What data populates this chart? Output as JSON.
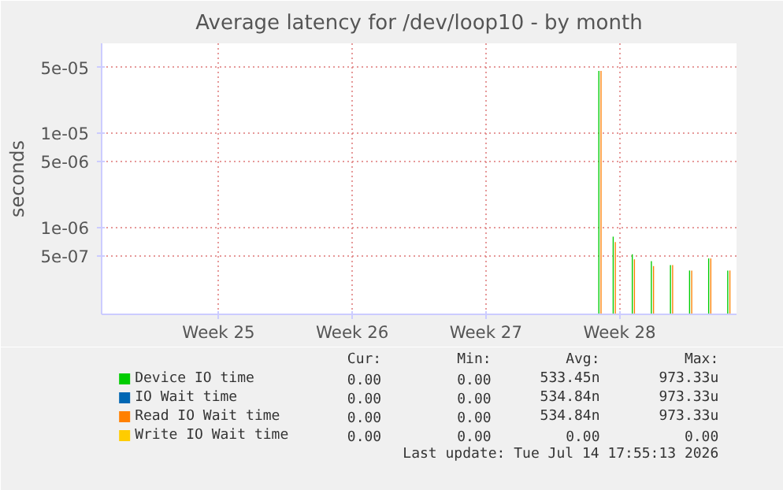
{
  "chart_data": {
    "type": "bar",
    "title": "Average latency for /dev/loop10 - by month",
    "ylabel": "seconds",
    "log": "y",
    "grid": true,
    "legend": "bottom",
    "ylim": [
      1.2e-07,
      9e-05
    ],
    "yticks": [
      {
        "value": 5e-07,
        "label": "5e-07"
      },
      {
        "value": 1e-06,
        "label": "1e-06"
      },
      {
        "value": 5e-06,
        "label": "5e-06"
      },
      {
        "value": 1e-05,
        "label": "1e-05"
      },
      {
        "value": 5e-05,
        "label": "5e-05"
      }
    ],
    "categories": [
      null,
      null,
      null,
      null,
      null,
      null,
      null,
      null,
      null,
      null,
      null,
      null,
      null,
      null,
      null,
      null,
      null,
      null,
      null,
      null,
      null,
      null,
      null,
      null,
      "Week 25",
      null,
      null,
      null,
      null,
      null,
      null,
      null,
      null,
      null,
      null,
      null,
      null,
      null,
      null,
      null,
      null,
      null,
      null,
      null,
      null,
      null,
      null,
      null,
      null,
      null,
      null,
      null,
      "Week 26",
      null,
      null,
      null,
      null,
      null,
      null,
      null,
      null,
      null,
      null,
      null,
      null,
      null,
      null,
      null,
      null,
      null,
      null,
      null,
      null,
      null,
      null,
      null,
      null,
      null,
      null,
      null,
      "Week 27",
      null,
      null,
      null,
      null,
      null,
      null,
      null,
      null,
      null,
      null,
      null,
      null,
      null,
      null,
      null,
      null,
      null,
      null,
      null,
      null,
      null,
      null,
      null,
      null,
      null,
      null,
      null,
      "Week 28",
      null,
      null,
      null,
      null,
      null,
      null,
      null,
      null,
      null,
      null,
      null,
      null,
      null,
      null,
      null,
      null,
      null,
      null,
      null,
      null,
      null,
      null,
      null,
      null
    ],
    "series": [
      {
        "name": "Device IO time",
        "color": "#00cc00",
        "values": [
          null,
          null,
          null,
          null,
          null,
          null,
          null,
          null,
          null,
          null,
          null,
          null,
          null,
          null,
          null,
          null,
          null,
          null,
          null,
          null,
          null,
          null,
          null,
          null,
          null,
          null,
          null,
          null,
          null,
          null,
          null,
          null,
          null,
          null,
          null,
          null,
          null,
          null,
          null,
          null,
          null,
          null,
          null,
          null,
          null,
          null,
          null,
          null,
          null,
          null,
          null,
          null,
          null,
          null,
          null,
          null,
          null,
          null,
          null,
          null,
          null,
          null,
          null,
          null,
          null,
          null,
          null,
          null,
          null,
          null,
          null,
          null,
          null,
          null,
          null,
          null,
          null,
          null,
          null,
          null,
          null,
          null,
          null,
          null,
          null,
          null,
          null,
          null,
          null,
          null,
          null,
          null,
          null,
          null,
          null,
          null,
          null,
          null,
          null,
          null,
          null,
          null,
          null,
          null,
          4.6e-05,
          null,
          null,
          8e-07,
          null,
          null,
          null,
          5.2e-07,
          null,
          null,
          null,
          4.4e-07,
          null,
          null,
          null,
          4e-07,
          null,
          null,
          null,
          3.5e-07,
          null,
          null,
          null,
          4.7e-07,
          null,
          null,
          null,
          3.5e-07,
          null
        ]
      },
      {
        "name": "IO Wait time",
        "color": "#0066b3",
        "values": [
          null,
          null,
          null,
          null,
          null,
          null,
          null,
          null,
          null,
          null,
          null,
          null,
          null,
          null,
          null,
          null,
          null,
          null,
          null,
          null,
          null,
          null,
          null,
          null,
          null,
          null,
          null,
          null,
          null,
          null,
          null,
          null,
          null,
          null,
          null,
          null,
          null,
          null,
          null,
          null,
          null,
          null,
          null,
          null,
          null,
          null,
          null,
          null,
          null,
          null,
          null,
          null,
          null,
          null,
          null,
          null,
          null,
          null,
          null,
          null,
          null,
          null,
          null,
          null,
          null,
          null,
          null,
          null,
          null,
          null,
          null,
          null,
          null,
          null,
          null,
          null,
          null,
          null,
          null,
          null,
          null,
          null,
          null,
          null,
          null,
          null,
          null,
          null,
          null,
          null,
          null,
          null,
          null,
          null,
          null,
          null,
          null,
          null,
          null,
          null,
          null,
          null,
          null,
          null,
          null,
          null,
          null,
          null,
          null,
          null,
          null,
          null,
          null,
          null,
          null,
          null,
          null,
          null,
          null,
          null,
          null,
          null,
          null,
          null,
          null,
          null,
          null,
          null,
          null,
          null,
          null,
          null,
          null
        ]
      },
      {
        "name": "Read IO Wait time",
        "color": "#ff8000",
        "values": [
          null,
          null,
          null,
          null,
          null,
          null,
          null,
          null,
          null,
          null,
          null,
          null,
          null,
          null,
          null,
          null,
          null,
          null,
          null,
          null,
          null,
          null,
          null,
          null,
          null,
          null,
          null,
          null,
          null,
          null,
          null,
          null,
          null,
          null,
          null,
          null,
          null,
          null,
          null,
          null,
          null,
          null,
          null,
          null,
          null,
          null,
          null,
          null,
          null,
          null,
          null,
          null,
          null,
          null,
          null,
          null,
          null,
          null,
          null,
          null,
          null,
          null,
          null,
          null,
          null,
          null,
          null,
          null,
          null,
          null,
          null,
          null,
          null,
          null,
          null,
          null,
          null,
          null,
          null,
          null,
          null,
          null,
          null,
          null,
          null,
          null,
          null,
          null,
          null,
          null,
          null,
          null,
          null,
          null,
          null,
          null,
          null,
          null,
          null,
          null,
          null,
          null,
          null,
          null,
          4.6e-05,
          null,
          null,
          7e-07,
          null,
          null,
          null,
          4.6e-07,
          null,
          null,
          null,
          3.9e-07,
          null,
          null,
          null,
          4e-07,
          null,
          null,
          null,
          3.5e-07,
          null,
          null,
          null,
          4.7e-07,
          null,
          null,
          null,
          3.5e-07,
          null
        ]
      },
      {
        "name": "Write IO Wait time",
        "color": "#ffcc00",
        "values": [
          null,
          null,
          null,
          null,
          null,
          null,
          null,
          null,
          null,
          null,
          null,
          null,
          null,
          null,
          null,
          null,
          null,
          null,
          null,
          null,
          null,
          null,
          null,
          null,
          null,
          null,
          null,
          null,
          null,
          null,
          null,
          null,
          null,
          null,
          null,
          null,
          null,
          null,
          null,
          null,
          null,
          null,
          null,
          null,
          null,
          null,
          null,
          null,
          null,
          null,
          null,
          null,
          null,
          null,
          null,
          null,
          null,
          null,
          null,
          null,
          null,
          null,
          null,
          null,
          null,
          null,
          null,
          null,
          null,
          null,
          null,
          null,
          null,
          null,
          null,
          null,
          null,
          null,
          null,
          null,
          null,
          null,
          null,
          null,
          null,
          null,
          null,
          null,
          null,
          null,
          null,
          null,
          null,
          null,
          null,
          null,
          null,
          null,
          null,
          null,
          null,
          null,
          null,
          null,
          null,
          null,
          null,
          null,
          null,
          null,
          null,
          null,
          null,
          null,
          null,
          null,
          null,
          null,
          null,
          null,
          null,
          null,
          null,
          null,
          null,
          null,
          null,
          null,
          null,
          null,
          null,
          null,
          null
        ]
      }
    ],
    "annotations": [
      "Cur:",
      "Min:",
      "Avg:",
      "Max:",
      "0.00",
      "0.00",
      "533.45n",
      "973.33u",
      "0.00",
      "0.00",
      "534.84n",
      "973.33u",
      "0.00",
      "0.00",
      "534.84n",
      "973.33u",
      "0.00",
      "0.00",
      "0.00",
      "0.00",
      "Last update: Tue Jul 14 17:55:13 2026"
    ]
  }
}
